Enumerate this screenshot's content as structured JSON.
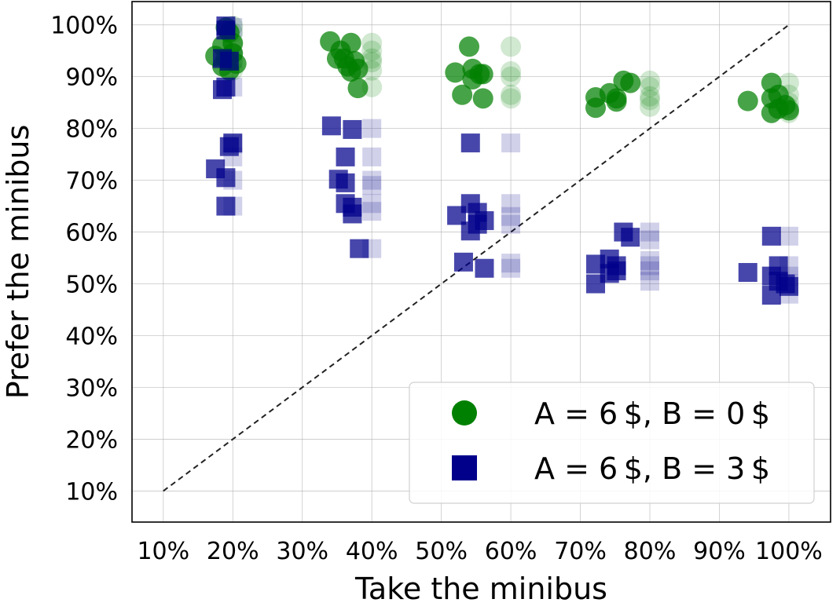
{
  "chart_data": {
    "type": "scatter",
    "xlabel": "Take the minibus",
    "ylabel": "Prefer the minibus",
    "xlim": [
      0.055,
      1.06
    ],
    "ylim": [
      0.04,
      1.045
    ],
    "xticks": [
      0.1,
      0.2,
      0.3,
      0.4,
      0.5,
      0.6,
      0.7,
      0.8,
      0.9,
      1.0
    ],
    "yticks": [
      0.1,
      0.2,
      0.3,
      0.4,
      0.5,
      0.6,
      0.7,
      0.8,
      0.9,
      1.0
    ],
    "xtick_labels": [
      "10%",
      "20%",
      "30%",
      "40%",
      "50%",
      "60%",
      "70%",
      "80%",
      "90%",
      "100%"
    ],
    "ytick_labels": [
      "10%",
      "20%",
      "30%",
      "40%",
      "50%",
      "60%",
      "70%",
      "80%",
      "90%",
      "100%"
    ],
    "grid": true,
    "reference_line": {
      "x": [
        0.1,
        1.0
      ],
      "y": [
        0.1,
        1.0
      ],
      "style": "dashed",
      "color": "#222222"
    },
    "legend_position": "lower-right",
    "series": [
      {
        "name": "A = 6 $, B = 0 $",
        "marker": "circle",
        "color": "#008000",
        "points": [
          [
            0.19,
            0.995
          ],
          [
            0.195,
            0.985
          ],
          [
            0.2,
            0.965
          ],
          [
            0.185,
            0.96
          ],
          [
            0.2,
            0.945
          ],
          [
            0.175,
            0.94
          ],
          [
            0.19,
            0.935
          ],
          [
            0.205,
            0.925
          ],
          [
            0.185,
            0.92
          ],
          [
            0.195,
            0.912
          ],
          [
            0.34,
            0.968
          ],
          [
            0.37,
            0.965
          ],
          [
            0.355,
            0.95
          ],
          [
            0.36,
            0.935
          ],
          [
            0.35,
            0.935
          ],
          [
            0.375,
            0.93
          ],
          [
            0.365,
            0.92
          ],
          [
            0.38,
            0.915
          ],
          [
            0.37,
            0.91
          ],
          [
            0.38,
            0.878
          ],
          [
            0.54,
            0.958
          ],
          [
            0.545,
            0.915
          ],
          [
            0.52,
            0.908
          ],
          [
            0.555,
            0.905
          ],
          [
            0.545,
            0.895
          ],
          [
            0.56,
            0.905
          ],
          [
            0.53,
            0.865
          ],
          [
            0.56,
            0.858
          ],
          [
            0.762,
            0.892
          ],
          [
            0.772,
            0.888
          ],
          [
            0.742,
            0.868
          ],
          [
            0.722,
            0.86
          ],
          [
            0.752,
            0.858
          ],
          [
            0.752,
            0.852
          ],
          [
            0.722,
            0.84
          ],
          [
            0.941,
            0.853
          ],
          [
            0.975,
            0.888
          ],
          [
            0.985,
            0.865
          ],
          [
            0.975,
            0.858
          ],
          [
            0.995,
            0.845
          ],
          [
            0.985,
            0.838
          ],
          [
            1.0,
            0.835
          ],
          [
            0.975,
            0.83
          ]
        ],
        "ghost_points": [
          [
            0.2,
            0.998
          ],
          [
            0.2,
            0.985
          ],
          [
            0.2,
            0.962
          ],
          [
            0.2,
            0.945
          ],
          [
            0.2,
            0.93
          ],
          [
            0.2,
            0.912
          ],
          [
            0.4,
            0.965
          ],
          [
            0.4,
            0.95
          ],
          [
            0.4,
            0.935
          ],
          [
            0.4,
            0.928
          ],
          [
            0.4,
            0.912
          ],
          [
            0.4,
            0.88
          ],
          [
            0.6,
            0.958
          ],
          [
            0.6,
            0.91
          ],
          [
            0.6,
            0.9
          ],
          [
            0.6,
            0.865
          ],
          [
            0.6,
            0.858
          ],
          [
            0.8,
            0.892
          ],
          [
            0.8,
            0.88
          ],
          [
            0.8,
            0.862
          ],
          [
            0.8,
            0.855
          ],
          [
            0.8,
            0.842
          ],
          [
            1.0,
            0.888
          ],
          [
            1.0,
            0.865
          ],
          [
            1.0,
            0.85
          ],
          [
            1.0,
            0.84
          ],
          [
            1.0,
            0.83
          ]
        ]
      },
      {
        "name": "A = 6 $, B = 3 $",
        "marker": "square",
        "color": "#00008b",
        "points": [
          [
            0.19,
            0.998
          ],
          [
            0.19,
            0.99
          ],
          [
            0.185,
            0.935
          ],
          [
            0.195,
            0.93
          ],
          [
            0.19,
            0.88
          ],
          [
            0.185,
            0.875
          ],
          [
            0.2,
            0.772
          ],
          [
            0.195,
            0.765
          ],
          [
            0.175,
            0.722
          ],
          [
            0.19,
            0.705
          ],
          [
            0.19,
            0.65
          ],
          [
            0.342,
            0.805
          ],
          [
            0.372,
            0.798
          ],
          [
            0.362,
            0.745
          ],
          [
            0.352,
            0.702
          ],
          [
            0.362,
            0.695
          ],
          [
            0.362,
            0.655
          ],
          [
            0.372,
            0.648
          ],
          [
            0.372,
            0.635
          ],
          [
            0.382,
            0.568
          ],
          [
            0.542,
            0.772
          ],
          [
            0.542,
            0.655
          ],
          [
            0.552,
            0.638
          ],
          [
            0.522,
            0.632
          ],
          [
            0.562,
            0.622
          ],
          [
            0.552,
            0.615
          ],
          [
            0.542,
            0.602
          ],
          [
            0.532,
            0.542
          ],
          [
            0.562,
            0.53
          ],
          [
            0.762,
            0.6
          ],
          [
            0.772,
            0.59
          ],
          [
            0.742,
            0.548
          ],
          [
            0.722,
            0.538
          ],
          [
            0.752,
            0.535
          ],
          [
            0.752,
            0.525
          ],
          [
            0.742,
            0.52
          ],
          [
            0.722,
            0.5
          ],
          [
            0.941,
            0.522
          ],
          [
            0.975,
            0.592
          ],
          [
            0.985,
            0.535
          ],
          [
            0.975,
            0.515
          ],
          [
            0.985,
            0.505
          ],
          [
            0.995,
            0.5
          ],
          [
            1.0,
            0.495
          ],
          [
            0.975,
            0.478
          ]
        ],
        "ghost_points": [
          [
            0.2,
            0.995
          ],
          [
            0.2,
            0.935
          ],
          [
            0.2,
            0.88
          ],
          [
            0.2,
            0.77
          ],
          [
            0.2,
            0.745
          ],
          [
            0.2,
            0.7
          ],
          [
            0.2,
            0.65
          ],
          [
            0.4,
            0.8
          ],
          [
            0.4,
            0.745
          ],
          [
            0.4,
            0.7
          ],
          [
            0.4,
            0.69
          ],
          [
            0.4,
            0.655
          ],
          [
            0.4,
            0.64
          ],
          [
            0.4,
            0.568
          ],
          [
            0.6,
            0.772
          ],
          [
            0.6,
            0.655
          ],
          [
            0.6,
            0.63
          ],
          [
            0.6,
            0.615
          ],
          [
            0.6,
            0.54
          ],
          [
            0.6,
            0.53
          ],
          [
            0.8,
            0.6
          ],
          [
            0.8,
            0.585
          ],
          [
            0.8,
            0.545
          ],
          [
            0.8,
            0.535
          ],
          [
            0.8,
            0.525
          ],
          [
            0.8,
            0.505
          ],
          [
            1.0,
            0.592
          ],
          [
            1.0,
            0.535
          ],
          [
            1.0,
            0.515
          ],
          [
            1.0,
            0.5
          ],
          [
            1.0,
            0.48
          ]
        ]
      }
    ]
  }
}
